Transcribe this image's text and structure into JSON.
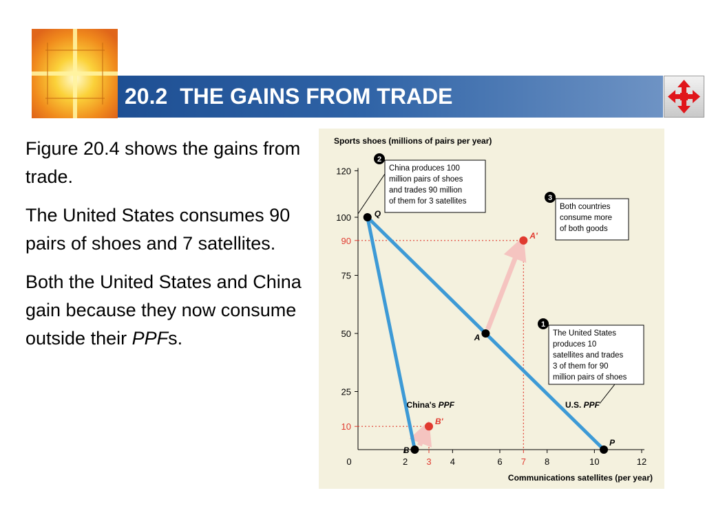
{
  "slide": {
    "title": "20.2  THE GAINS FROM TRADE",
    "paragraphs": [
      "Figure 20.4 shows the gains from trade.",
      "The United States consumes 90 pairs of shoes and 7 satellites.",
      "Both the United States and China gain because they now consume outside their "
    ],
    "ppf_italic": "PPF",
    "ppf_suffix": "s.",
    "nav_icon": "four-way-arrow-icon",
    "logo_icon": "sunburst-cross-logo"
  },
  "chart_data": {
    "type": "line",
    "ylabel": "Sports shoes (millions of pairs per year)",
    "xlabel": "Communications satellites (per year)",
    "xlim": [
      0,
      12
    ],
    "ylim": [
      0,
      120
    ],
    "x_ticks": [
      "0",
      "2",
      "4",
      "6",
      "8",
      "10",
      "12"
    ],
    "y_ticks": [
      "25",
      "50",
      "75",
      "100",
      "120"
    ],
    "highlight_x_ticks": [
      "3",
      "7"
    ],
    "highlight_y_ticks": [
      "10",
      "90"
    ],
    "series": [
      {
        "name": "China's PPF",
        "points": [
          [
            0.4,
            100
          ],
          [
            2.4,
            0
          ]
        ]
      },
      {
        "name": "U.S. PPF",
        "points": [
          [
            0.4,
            100
          ],
          [
            10.4,
            0
          ]
        ]
      }
    ],
    "points": [
      {
        "label": "Q",
        "x": 0.4,
        "y": 100
      },
      {
        "label": "A",
        "x": 5.4,
        "y": 50
      },
      {
        "label": "B",
        "x": 2.4,
        "y": 0
      },
      {
        "label": "P",
        "x": 10.4,
        "y": 0
      },
      {
        "label": "A'",
        "x": 7,
        "y": 90
      },
      {
        "label": "B'",
        "x": 3,
        "y": 10
      }
    ],
    "annotations": [
      {
        "number": "1",
        "text": [
          "The United States",
          "produces 10",
          "satellites and trades",
          "3 of them for 90",
          "million pairs of shoes"
        ]
      },
      {
        "number": "2",
        "text": [
          "China produces 100",
          "million pairs of shoes",
          "and trades 90 million",
          "of them for 3 satellites"
        ]
      },
      {
        "number": "3",
        "text": [
          "Both countries",
          "consume more",
          "of both goods"
        ]
      }
    ],
    "colors": {
      "ppf": "#3d9ad6",
      "highlight": "#e03a2f",
      "arrow": "#f5c4c0",
      "background": "#f4f1de"
    }
  }
}
